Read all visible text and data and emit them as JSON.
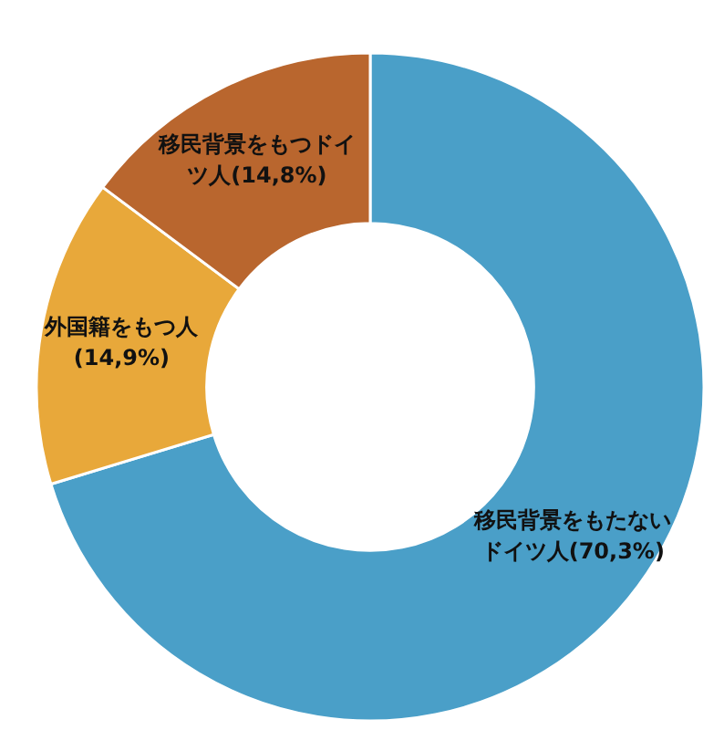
{
  "chart_data": {
    "type": "donut",
    "categories": [
      "移民背景をもたないドイツ人",
      "外国籍をもつ人",
      "移民背景をもつドイツ人"
    ],
    "values": [
      70.3,
      14.9,
      14.8
    ],
    "value_labels": [
      "(70,3%)",
      "(14,9%)",
      "(14,8%)"
    ],
    "colors": [
      "#4a9fc8",
      "#e8a83a",
      "#b9662e"
    ]
  }
}
